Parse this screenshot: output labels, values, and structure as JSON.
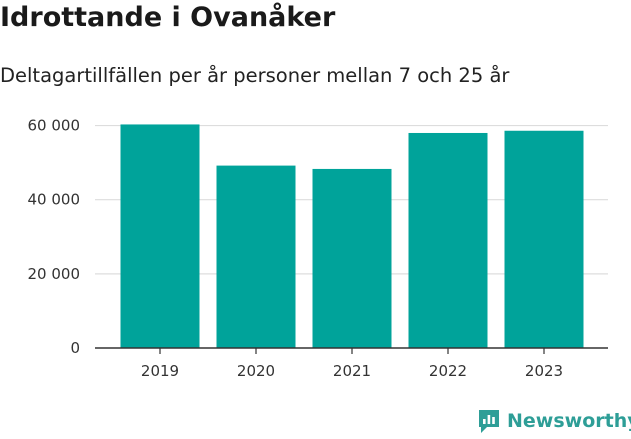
{
  "header": {
    "title": "Idrottande i Ovanåker",
    "subtitle": "Deltagartillfällen per år personer mellan 7 och 25 år"
  },
  "brand": {
    "name": "Newsworthy",
    "color": "#2e9e97",
    "icon": "newsworthy-chart-logo-icon"
  },
  "colors": {
    "bar": "#00a39a",
    "grid": "#dddddd",
    "axis": "#333333"
  },
  "chart_data": {
    "type": "bar",
    "title": "Idrottande i Ovanåker",
    "subtitle": "Deltagartillfällen per år personer mellan 7 och 25 år",
    "xlabel": "",
    "ylabel": "",
    "categories": [
      "2019",
      "2020",
      "2021",
      "2022",
      "2023"
    ],
    "values": [
      60300,
      49200,
      48300,
      58000,
      58600
    ],
    "ylim": [
      0,
      61500
    ],
    "yticks": [
      0,
      20000,
      40000,
      60000
    ],
    "ytick_labels": [
      "0",
      "20 000",
      "40 000",
      "60 000"
    ],
    "grid": true,
    "legend": "none"
  }
}
